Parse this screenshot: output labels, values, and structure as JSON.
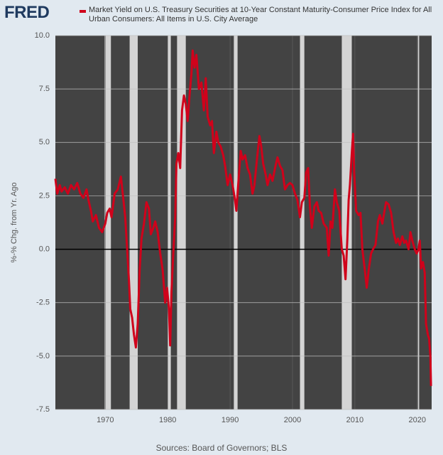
{
  "chart_data": {
    "type": "line",
    "logo": "FRED",
    "ylabel": "%-% Chg. from Yr. Ago",
    "source": "Sources: Board of Governors; BLS",
    "xlim": [
      1962.0,
      2022.3
    ],
    "xticks": [
      1970,
      1980,
      1990,
      2000,
      2010,
      2020
    ],
    "ylim": [
      -7.5,
      10
    ],
    "yticks": [
      {
        "value": -7.5,
        "label": "-7.5"
      },
      {
        "value": -5,
        "label": "-5.0"
      },
      {
        "value": -2.5,
        "label": "-2.5"
      },
      {
        "value": 0,
        "label": "0.0"
      },
      {
        "value": 2.5,
        "label": "2.5"
      },
      {
        "value": 5,
        "label": "5.0"
      },
      {
        "value": 7.5,
        "label": "7.5"
      },
      {
        "value": 10,
        "label": "10.0"
      }
    ],
    "grid": true,
    "recessions": [
      [
        1969.9,
        1970.9
      ],
      [
        1973.9,
        1975.2
      ],
      [
        1980.0,
        1980.5
      ],
      [
        1981.5,
        1982.9
      ],
      [
        1990.6,
        1991.2
      ],
      [
        2001.2,
        2001.9
      ],
      [
        2007.9,
        2009.5
      ],
      [
        2020.1,
        2020.3
      ]
    ],
    "x": [
      1962.0,
      1962.3,
      1962.7,
      1963.0,
      1963.5,
      1964.0,
      1964.5,
      1965.0,
      1965.5,
      1966.0,
      1966.5,
      1967.0,
      1967.3,
      1967.7,
      1968.0,
      1968.5,
      1969.0,
      1969.5,
      1970.0,
      1970.3,
      1970.7,
      1971.0,
      1971.5,
      1972.0,
      1972.5,
      1972.8,
      1973.2,
      1973.5,
      1973.8,
      1974.0,
      1974.3,
      1974.6,
      1974.9,
      1975.2,
      1975.5,
      1975.8,
      1976.2,
      1976.6,
      1977.0,
      1977.3,
      1977.7,
      1978.0,
      1978.4,
      1978.8,
      1979.2,
      1979.6,
      1979.9,
      1980.2,
      1980.4,
      1980.6,
      1980.9,
      1981.2,
      1981.4,
      1981.7,
      1982.0,
      1982.3,
      1982.6,
      1982.9,
      1983.2,
      1983.5,
      1983.8,
      1984.0,
      1984.3,
      1984.6,
      1985.0,
      1985.4,
      1985.8,
      1986.1,
      1986.4,
      1986.8,
      1987.1,
      1987.4,
      1987.8,
      1988.1,
      1988.5,
      1988.9,
      1989.2,
      1989.6,
      1990.0,
      1990.4,
      1990.8,
      1991.0,
      1991.3,
      1991.7,
      1992.0,
      1992.4,
      1992.8,
      1993.2,
      1993.6,
      1993.9,
      1994.3,
      1994.7,
      1995.0,
      1995.3,
      1995.7,
      1996.0,
      1996.4,
      1996.8,
      1997.2,
      1997.6,
      1998.0,
      1998.4,
      1998.8,
      1999.2,
      1999.6,
      2000.0,
      2000.4,
      2000.8,
      2001.2,
      2001.5,
      2001.9,
      2002.2,
      2002.5,
      2002.8,
      2003.1,
      2003.5,
      2003.9,
      2004.2,
      2004.6,
      2005.0,
      2005.5,
      2005.8,
      2006.1,
      2006.4,
      2006.8,
      2007.1,
      2007.5,
      2007.9,
      2008.2,
      2008.5,
      2008.8,
      2009.0,
      2009.2,
      2009.5,
      2009.7,
      2009.9,
      2010.2,
      2010.6,
      2010.9,
      2011.2,
      2011.6,
      2011.9,
      2012.2,
      2012.6,
      2012.9,
      2013.3,
      2013.7,
      2014.0,
      2014.4,
      2014.8,
      2015.0,
      2015.4,
      2015.8,
      2016.2,
      2016.6,
      2016.9,
      2017.2,
      2017.6,
      2017.9,
      2018.2,
      2018.6,
      2018.9,
      2019.2,
      2019.6,
      2019.9,
      2020.2,
      2020.4,
      2020.6,
      2020.9,
      2021.2,
      2021.4,
      2021.7,
      2021.9,
      2022.1,
      2022.2
    ],
    "series": [
      {
        "name": "Market Yield on U.S. Treasury Securities at 10-Year Constant Maturity-Consumer Price Index for All Urban Consumers: All Items in U.S. City Average",
        "color": "#d0021b",
        "values": [
          3.3,
          2.6,
          3.0,
          2.7,
          2.9,
          2.6,
          3.0,
          2.8,
          3.1,
          2.6,
          2.4,
          2.8,
          2.3,
          1.8,
          1.3,
          1.6,
          1.0,
          0.8,
          1.2,
          1.7,
          1.9,
          1.5,
          2.6,
          2.8,
          3.4,
          2.6,
          1.5,
          0.0,
          -1.5,
          -2.8,
          -3.2,
          -4.0,
          -4.6,
          -3.5,
          -1.0,
          0.5,
          1.2,
          2.2,
          1.9,
          0.7,
          1.0,
          1.3,
          0.8,
          -0.2,
          -1.0,
          -2.5,
          -1.8,
          -2.8,
          -4.5,
          -2.0,
          -0.2,
          1.5,
          4.0,
          4.5,
          3.8,
          6.5,
          7.2,
          6.8,
          6.0,
          7.2,
          8.2,
          9.3,
          8.5,
          9.1,
          7.5,
          7.8,
          6.5,
          8.0,
          6.2,
          5.8,
          6.0,
          4.5,
          5.5,
          5.0,
          4.8,
          4.4,
          3.9,
          3.0,
          3.5,
          3.0,
          2.3,
          1.8,
          3.0,
          4.6,
          4.2,
          4.4,
          3.8,
          3.5,
          2.6,
          3.0,
          4.2,
          5.3,
          4.8,
          4.0,
          3.5,
          3.0,
          3.5,
          3.2,
          3.8,
          4.3,
          3.9,
          3.7,
          2.8,
          3.0,
          3.1,
          3.0,
          2.6,
          2.3,
          1.5,
          2.2,
          2.4,
          3.6,
          3.8,
          2.0,
          1.0,
          2.0,
          2.2,
          1.8,
          1.7,
          1.2,
          1.0,
          -0.3,
          1.3,
          1.0,
          2.8,
          2.2,
          1.8,
          0.0,
          -0.3,
          -1.4,
          0.5,
          2.3,
          3.0,
          4.5,
          5.4,
          3.5,
          1.8,
          1.6,
          1.7,
          0.0,
          -1.0,
          -1.8,
          -1.0,
          -0.2,
          0.0,
          0.2,
          1.3,
          1.6,
          1.2,
          1.9,
          2.2,
          2.1,
          1.7,
          0.8,
          0.3,
          0.5,
          0.2,
          0.6,
          0.3,
          0.4,
          0.0,
          0.8,
          0.4,
          0.0,
          -0.2,
          0.0,
          0.4,
          -0.9,
          -0.6,
          -1.1,
          -3.5,
          -4.0,
          -4.2,
          -5.0,
          -6.4
        ]
      }
    ]
  }
}
